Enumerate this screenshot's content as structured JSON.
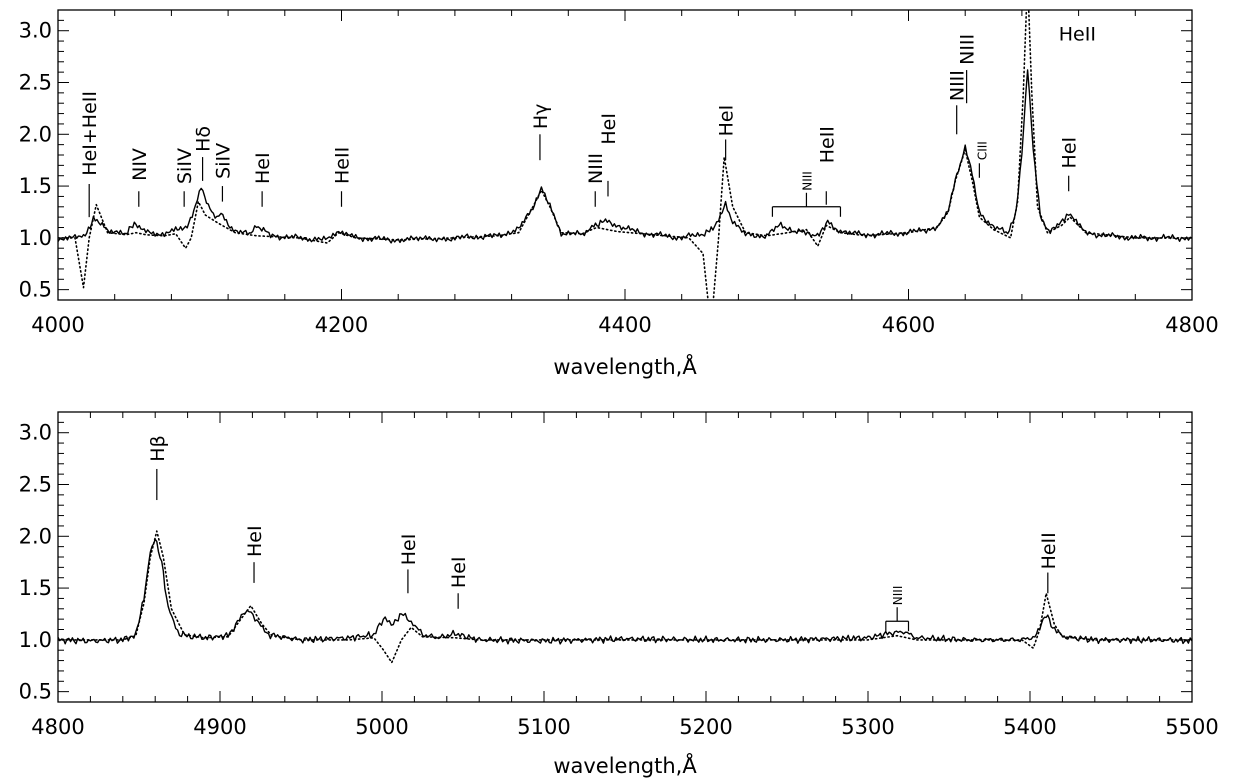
{
  "chart_data": [
    {
      "type": "line",
      "xlabel": "wavelength,Å",
      "ylabel": "",
      "xlim": [
        4000,
        4800
      ],
      "ylim": [
        0.4,
        3.2
      ],
      "xticks": [
        4000,
        4200,
        4400,
        4600,
        4800
      ],
      "xtick_labels": [
        "4000",
        "4200",
        "4400",
        "4600",
        "4800"
      ],
      "yticks": [
        0.5,
        1.0,
        1.5,
        2.0,
        2.5,
        3.0
      ],
      "ytick_labels": [
        "0.5",
        "1.0",
        "1.5",
        "2.0",
        "2.5",
        "3.0"
      ],
      "series": [
        {
          "style": "solid",
          "x": [
            4000,
            4012,
            4018,
            4025,
            4035,
            4048,
            4055,
            4062,
            4075,
            4083,
            4090,
            4097,
            4101,
            4106,
            4112,
            4115,
            4120,
            4125,
            4135,
            4140,
            4150,
            4170,
            4190,
            4198,
            4210,
            4240,
            4280,
            4310,
            4325,
            4335,
            4341,
            4347,
            4355,
            4370,
            4378,
            4385,
            4395,
            4410,
            4440,
            4455,
            4462,
            4466,
            4471,
            4476,
            4485,
            4500,
            4510,
            4520,
            4530,
            4537,
            4543,
            4552,
            4570,
            4600,
            4620,
            4628,
            4633,
            4640,
            4645,
            4650,
            4660,
            4670,
            4676,
            4680,
            4684,
            4688,
            4693,
            4700,
            4710,
            4713,
            4725,
            4740,
            4760,
            4800
          ],
          "y": [
            1.0,
            1.02,
            1.0,
            1.18,
            1.08,
            1.05,
            1.14,
            1.05,
            1.03,
            1.1,
            1.08,
            1.3,
            1.48,
            1.3,
            1.2,
            1.25,
            1.14,
            1.05,
            1.05,
            1.12,
            1.02,
            1.0,
            0.98,
            1.06,
            1.0,
            0.98,
            1.0,
            1.02,
            1.08,
            1.3,
            1.47,
            1.32,
            1.05,
            1.03,
            1.12,
            1.16,
            1.12,
            1.05,
            1.0,
            1.04,
            1.08,
            1.18,
            1.34,
            1.15,
            1.03,
            1.02,
            1.13,
            1.06,
            1.04,
            1.02,
            1.17,
            1.05,
            1.03,
            1.05,
            1.1,
            1.25,
            1.55,
            1.88,
            1.6,
            1.25,
            1.1,
            1.05,
            1.25,
            1.8,
            2.63,
            1.85,
            1.2,
            1.05,
            1.18,
            1.22,
            1.05,
            1.02,
            1.0,
            1.0
          ]
        },
        {
          "style": "dotted",
          "x": [
            4000,
            4012,
            4018,
            4022,
            4027,
            4035,
            4048,
            4055,
            4062,
            4075,
            4083,
            4090,
            4094,
            4099,
            4104,
            4112,
            4125,
            4140,
            4170,
            4190,
            4198,
            4210,
            4240,
            4280,
            4310,
            4325,
            4335,
            4341,
            4347,
            4355,
            4370,
            4380,
            4395,
            4420,
            4445,
            4455,
            4459,
            4462,
            4466,
            4470,
            4476,
            4485,
            4500,
            4515,
            4528,
            4536,
            4542,
            4552,
            4570,
            4600,
            4620,
            4628,
            4633,
            4640,
            4645,
            4650,
            4660,
            4672,
            4677,
            4681,
            4684,
            4687,
            4691,
            4698,
            4708,
            4714,
            4725,
            4760,
            4800
          ],
          "y": [
            1.0,
            1.0,
            0.52,
            1.0,
            1.32,
            1.05,
            1.03,
            1.05,
            1.03,
            1.02,
            1.04,
            0.9,
            1.0,
            1.35,
            1.22,
            1.15,
            1.05,
            1.02,
            1.0,
            0.95,
            1.05,
            1.0,
            0.98,
            1.0,
            1.02,
            1.05,
            1.3,
            1.46,
            1.3,
            1.05,
            1.04,
            1.1,
            1.06,
            1.03,
            1.0,
            0.85,
            0.35,
            0.35,
            1.0,
            1.78,
            1.3,
            1.05,
            1.02,
            1.05,
            1.08,
            0.92,
            1.12,
            1.05,
            1.02,
            1.05,
            1.1,
            1.25,
            1.55,
            1.85,
            1.55,
            1.2,
            1.08,
            1.0,
            1.35,
            2.4,
            3.5,
            2.4,
            1.3,
            1.05,
            1.12,
            1.2,
            1.05,
            1.0,
            1.0
          ]
        }
      ],
      "annotations": [
        {
          "label": "HeI+HeII",
          "x": 4022,
          "tick": [
            1.2,
            1.52
          ],
          "text_y": 1.6
        },
        {
          "label": "NIV",
          "x": 4057,
          "tick": [
            1.3,
            1.45
          ],
          "text_y": 1.55
        },
        {
          "label": "SiIV",
          "x": 4089,
          "tick": [
            1.3,
            1.45
          ],
          "text_y": 1.52
        },
        {
          "label": "Hδ",
          "x": 4102,
          "tick": [
            1.55,
            1.78
          ],
          "text_y": 1.83
        },
        {
          "label": "SiIV",
          "x": 4116,
          "tick": [
            1.35,
            1.5
          ],
          "text_y": 1.57
        },
        {
          "label": "HeI",
          "x": 4144,
          "tick": [
            1.3,
            1.45
          ],
          "text_y": 1.52
        },
        {
          "label": "HeII",
          "x": 4200,
          "tick": [
            1.3,
            1.45
          ],
          "text_y": 1.52
        },
        {
          "label": "Hγ",
          "x": 4340,
          "tick": [
            1.75,
            2.0
          ],
          "text_y": 2.05
        },
        {
          "label": "NIII",
          "x": 4379,
          "tick": [
            1.3,
            1.45
          ],
          "text_y": 1.52
        },
        {
          "label": "HeI",
          "x": 4388,
          "tick": [
            1.4,
            1.55
          ],
          "text_y": 1.9
        },
        {
          "label": "HeI",
          "x": 4471,
          "tick": [
            1.75,
            1.95
          ],
          "text_y": 1.98
        },
        {
          "label": "HeII",
          "x": 4542,
          "tick": [
            1.32,
            1.45
          ],
          "text_y": 1.72
        },
        {
          "label": "NIII",
          "x": 4634,
          "tick": [
            2.0,
            2.28
          ],
          "text_y": 2.32
        },
        {
          "label": "NIII",
          "x": 4641,
          "tick": [
            2.3,
            2.62
          ],
          "text_y": 2.67
        },
        {
          "label": "CIII",
          "x": 4650,
          "tick": [
            1.58,
            1.72
          ],
          "text_y": 1.75,
          "small": true
        },
        {
          "label": "HeII",
          "x": 4706,
          "tick": null,
          "text_y": 3.0,
          "horizontal": true
        },
        {
          "label": "HeI",
          "x": 4713,
          "tick": [
            1.45,
            1.6
          ],
          "text_y": 1.67
        }
      ],
      "brackets": [
        {
          "label": "NIII",
          "x_start": 4504,
          "x_end": 4552,
          "y": 1.3,
          "small": true
        }
      ]
    },
    {
      "type": "line",
      "xlabel": "wavelength,Å",
      "ylabel": "",
      "xlim": [
        4800,
        5500
      ],
      "ylim": [
        0.4,
        3.2
      ],
      "xticks": [
        4800,
        4900,
        5000,
        5100,
        5200,
        5300,
        5400,
        5500
      ],
      "xtick_labels": [
        "4800",
        "4900",
        "5000",
        "5100",
        "5200",
        "5300",
        "5400",
        "5500"
      ],
      "yticks": [
        0.5,
        1.0,
        1.5,
        2.0,
        2.5,
        3.0
      ],
      "ytick_labels": [
        "0.5",
        "1.0",
        "1.5",
        "2.0",
        "2.5",
        "3.0"
      ],
      "series": [
        {
          "style": "solid",
          "x": [
            4800,
            4820,
            4840,
            4848,
            4853,
            4857,
            4860,
            4864,
            4868,
            4875,
            4890,
            4905,
            4912,
            4918,
            4924,
            4930,
            4950,
            4980,
            4995,
            5002,
            5007,
            5012,
            5018,
            5025,
            5035,
            5045,
            5060,
            5100,
            5150,
            5200,
            5250,
            5300,
            5312,
            5322,
            5330,
            5360,
            5395,
            5403,
            5407,
            5410,
            5414,
            5420,
            5440,
            5480,
            5500
          ],
          "y": [
            1.0,
            0.99,
            1.0,
            1.05,
            1.4,
            1.85,
            1.98,
            1.75,
            1.3,
            1.05,
            1.02,
            1.04,
            1.2,
            1.3,
            1.15,
            1.05,
            1.0,
            1.02,
            1.05,
            1.22,
            1.15,
            1.25,
            1.18,
            1.05,
            1.02,
            1.06,
            1.0,
            0.99,
            1.01,
            1.0,
            1.0,
            1.02,
            1.06,
            1.08,
            1.02,
            1.0,
            1.0,
            1.03,
            1.15,
            1.25,
            1.12,
            1.03,
            1.0,
            1.0,
            0.99
          ]
        },
        {
          "style": "dotted",
          "x": [
            4800,
            4820,
            4840,
            4848,
            4853,
            4857,
            4861,
            4865,
            4870,
            4878,
            4890,
            4905,
            4912,
            4919,
            4926,
            4932,
            4950,
            4980,
            4995,
            5001,
            5006,
            5012,
            5018,
            5025,
            5045,
            5060,
            5100,
            5150,
            5200,
            5250,
            5300,
            5318,
            5330,
            5360,
            5395,
            5402,
            5406,
            5410,
            5415,
            5420,
            5440,
            5480,
            5500
          ],
          "y": [
            1.0,
            1.0,
            1.0,
            1.04,
            1.35,
            1.8,
            2.05,
            1.8,
            1.3,
            1.05,
            1.02,
            1.03,
            1.18,
            1.33,
            1.15,
            1.04,
            1.0,
            1.0,
            1.02,
            0.9,
            0.78,
            1.0,
            1.12,
            1.03,
            1.02,
            1.0,
            1.0,
            1.0,
            1.0,
            1.0,
            1.0,
            1.04,
            1.0,
            1.0,
            1.0,
            0.92,
            1.1,
            1.45,
            1.15,
            1.03,
            1.0,
            1.0,
            1.0
          ]
        }
      ],
      "annotations": [
        {
          "label": "Hβ",
          "x": 4861,
          "tick": [
            2.35,
            2.65
          ],
          "text_y": 2.72
        },
        {
          "label": "HeI",
          "x": 4921,
          "tick": [
            1.55,
            1.75
          ],
          "text_y": 1.8
        },
        {
          "label": "HeI",
          "x": 5016,
          "tick": [
            1.45,
            1.68
          ],
          "text_y": 1.72
        },
        {
          "label": "HeI",
          "x": 5047,
          "tick": [
            1.3,
            1.45
          ],
          "text_y": 1.5
        },
        {
          "label": "HeII",
          "x": 5411,
          "tick": [
            1.45,
            1.65
          ],
          "text_y": 1.68
        }
      ],
      "brackets": [
        {
          "label": "NIII",
          "x_start": 5311,
          "x_end": 5325,
          "y": 1.18,
          "small": true
        }
      ]
    }
  ]
}
